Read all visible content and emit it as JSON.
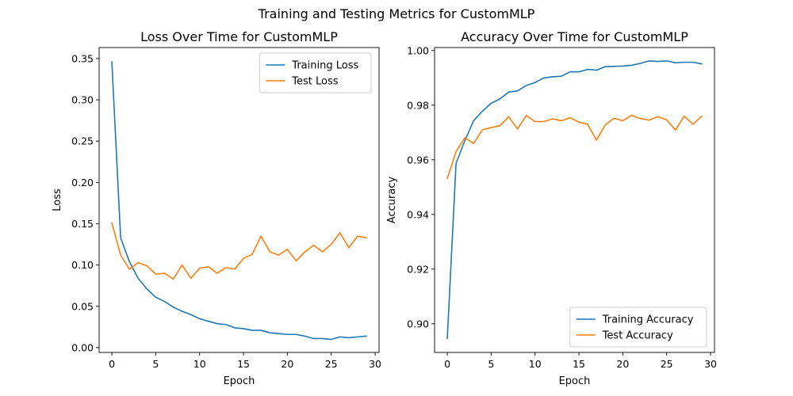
{
  "figure_title": "Training and Testing Metrics for CustomMLP",
  "chart_data": [
    {
      "type": "line",
      "title": "Loss Over Time for CustomMLP",
      "xlabel": "Epoch",
      "ylabel": "Loss",
      "xlim": [
        -1.45,
        30.45
      ],
      "ylim": [
        -0.0058,
        0.3633
      ],
      "xticks": [
        0,
        5,
        10,
        15,
        20,
        25,
        30
      ],
      "xtick_labels": [
        "0",
        "5",
        "10",
        "15",
        "20",
        "25",
        "30"
      ],
      "yticks": [
        0.0,
        0.05,
        0.1,
        0.15,
        0.2,
        0.25,
        0.3,
        0.35
      ],
      "ytick_labels": [
        "0.00",
        "0.05",
        "0.10",
        "0.15",
        "0.20",
        "0.25",
        "0.30",
        "0.35"
      ],
      "legend_position": "top-right",
      "x": [
        0,
        1,
        2,
        3,
        4,
        5,
        6,
        7,
        8,
        9,
        10,
        11,
        12,
        13,
        14,
        15,
        16,
        17,
        18,
        19,
        20,
        21,
        22,
        23,
        24,
        25,
        26,
        27,
        28,
        29
      ],
      "series": [
        {
          "name": "Training Loss",
          "color": "#1f77b4",
          "values": [
            0.346,
            0.133,
            0.104,
            0.084,
            0.071,
            0.061,
            0.056,
            0.049,
            0.044,
            0.04,
            0.035,
            0.032,
            0.029,
            0.028,
            0.024,
            0.023,
            0.021,
            0.021,
            0.018,
            0.017,
            0.016,
            0.016,
            0.014,
            0.011,
            0.011,
            0.01,
            0.013,
            0.012,
            0.013,
            0.014
          ]
        },
        {
          "name": "Test Loss",
          "color": "#ff7f0e",
          "values": [
            0.151,
            0.112,
            0.095,
            0.103,
            0.099,
            0.089,
            0.09,
            0.083,
            0.1,
            0.084,
            0.096,
            0.098,
            0.09,
            0.097,
            0.095,
            0.108,
            0.113,
            0.135,
            0.116,
            0.112,
            0.119,
            0.105,
            0.116,
            0.124,
            0.116,
            0.125,
            0.139,
            0.121,
            0.135,
            0.133
          ]
        }
      ]
    },
    {
      "type": "line",
      "title": "Accuracy Over Time for CustomMLP",
      "xlabel": "Epoch",
      "ylabel": "Accuracy",
      "xlim": [
        -1.45,
        30.45
      ],
      "ylim": [
        0.8895,
        1.0011
      ],
      "xticks": [
        0,
        5,
        10,
        15,
        20,
        25,
        30
      ],
      "xtick_labels": [
        "0",
        "5",
        "10",
        "15",
        "20",
        "25",
        "30"
      ],
      "yticks": [
        0.9,
        0.92,
        0.94,
        0.96,
        0.98,
        1.0
      ],
      "ytick_labels": [
        "0.90",
        "0.92",
        "0.94",
        "0.96",
        "0.98",
        "1.00"
      ],
      "legend_position": "bottom-right",
      "x": [
        0,
        1,
        2,
        3,
        4,
        5,
        6,
        7,
        8,
        9,
        10,
        11,
        12,
        13,
        14,
        15,
        16,
        17,
        18,
        19,
        20,
        21,
        22,
        23,
        24,
        25,
        26,
        27,
        28,
        29
      ],
      "series": [
        {
          "name": "Training Accuracy",
          "color": "#1f77b4",
          "values": [
            0.8947,
            0.9587,
            0.967,
            0.9743,
            0.9778,
            0.9807,
            0.9823,
            0.9848,
            0.9852,
            0.9872,
            0.9883,
            0.99,
            0.9904,
            0.9906,
            0.9922,
            0.9922,
            0.9931,
            0.9928,
            0.9941,
            0.9942,
            0.9943,
            0.9946,
            0.9953,
            0.9962,
            0.996,
            0.9962,
            0.9955,
            0.9957,
            0.9957,
            0.9951
          ]
        },
        {
          "name": "Test Accuracy",
          "color": "#ff7f0e",
          "values": [
            0.9532,
            0.963,
            0.9681,
            0.966,
            0.971,
            0.9718,
            0.9725,
            0.9758,
            0.9713,
            0.9762,
            0.974,
            0.974,
            0.975,
            0.9743,
            0.9754,
            0.9738,
            0.973,
            0.9672,
            0.9728,
            0.9752,
            0.9743,
            0.9763,
            0.9751,
            0.9745,
            0.9758,
            0.9746,
            0.9709,
            0.976,
            0.973,
            0.976
          ]
        }
      ]
    }
  ]
}
